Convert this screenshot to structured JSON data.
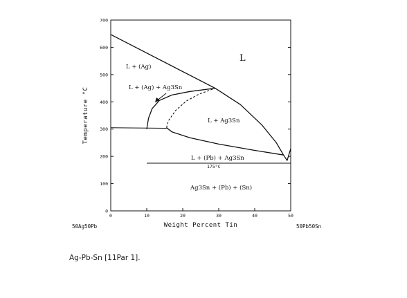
{
  "diagram": {
    "x_axis": {
      "label": "Weight Percent Tin",
      "min": 0,
      "max": 50,
      "ticks": [
        "0",
        "10",
        "20",
        "30",
        "40",
        "50"
      ],
      "left_end": "50Ag50Pb",
      "right_end": "50Pb50Sn"
    },
    "y_axis": {
      "label": "Temperature °C",
      "min": 0,
      "max": 700,
      "ticks": [
        "0",
        "100",
        "200",
        "300",
        "400",
        "500",
        "600",
        "700"
      ]
    },
    "phase_labels": {
      "liquid": "L",
      "l_ag": "L + (Ag)",
      "l_ag_ag3sn": "L + (Ag) + Ag3Sn",
      "l_ag3sn": "L + Ag3Sn",
      "l_pb_ag3sn": "L + (Pb) + Ag3Sn",
      "solid": "Ag3Sn + (Pb) + (Sn)",
      "eutectic_temp": "175°C"
    },
    "curves": {
      "ag_liquidus": [
        [
          0,
          647
        ],
        [
          29,
          450
        ]
      ],
      "ag3sn_liquidus": [
        [
          29,
          450
        ],
        [
          36,
          390
        ],
        [
          42,
          315
        ],
        [
          46,
          250
        ],
        [
          48,
          205
        ]
      ],
      "upper_valley": [
        [
          10,
          300
        ],
        [
          10.5,
          340
        ],
        [
          11.5,
          375
        ],
        [
          13.5,
          405
        ],
        [
          17,
          425
        ],
        [
          22,
          438
        ],
        [
          29,
          450
        ]
      ],
      "dashed_boundary": [
        [
          15.5,
          305
        ],
        [
          16,
          330
        ],
        [
          18,
          368
        ],
        [
          21,
          403
        ],
        [
          24.5,
          428
        ],
        [
          29,
          450
        ]
      ],
      "invariant_305": [
        [
          0,
          305
        ],
        [
          15.5,
          303
        ]
      ],
      "lower_valley": [
        [
          15.5,
          305
        ],
        [
          17,
          290
        ],
        [
          22,
          268
        ],
        [
          30,
          245
        ],
        [
          40,
          222
        ],
        [
          48,
          205
        ]
      ],
      "pb_liquidus_tip": [
        [
          48,
          205
        ],
        [
          49,
          185
        ],
        [
          50,
          228
        ]
      ],
      "eutectic_line": [
        [
          10,
          175
        ],
        [
          50,
          175
        ]
      ]
    }
  },
  "caption": "Ag-Pb-Sn [11Par 1]."
}
